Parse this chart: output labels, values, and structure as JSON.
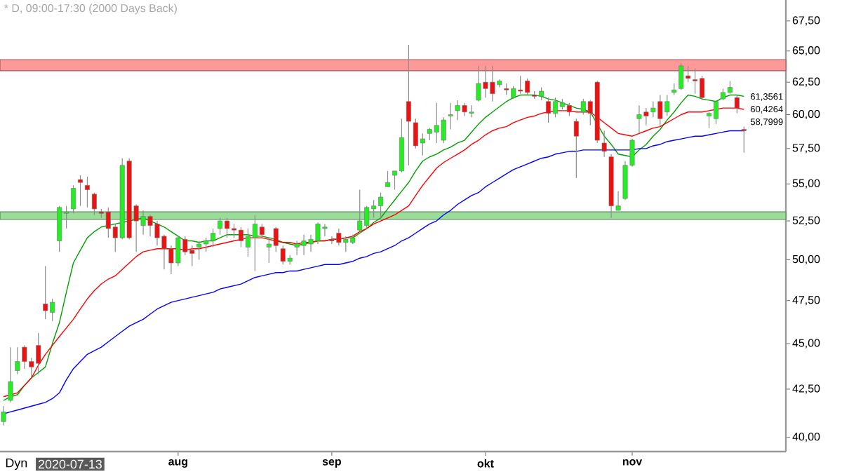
{
  "chart_data": {
    "type": "candlestick",
    "title": "* D, 09:00-17:30 (2000 Days Back)",
    "categories": [
      null,
      null,
      null,
      null,
      null,
      null,
      null,
      null,
      null,
      null,
      null,
      null,
      null,
      null,
      null,
      null,
      null,
      null,
      null,
      null,
      null,
      null,
      null,
      null,
      null,
      "aug",
      null,
      null,
      null,
      null,
      null,
      null,
      null,
      null,
      null,
      null,
      null,
      null,
      null,
      null,
      null,
      null,
      null,
      null,
      null,
      null,
      null,
      "sep",
      null,
      null,
      null,
      null,
      null,
      null,
      null,
      null,
      null,
      null,
      null,
      null,
      null,
      null,
      null,
      null,
      null,
      null,
      null,
      null,
      null,
      "okt",
      null,
      null,
      null,
      null,
      null,
      null,
      null,
      null,
      null,
      null,
      null,
      null,
      null,
      null,
      null,
      null,
      null,
      null,
      null,
      null,
      "nov",
      null,
      null,
      null,
      null,
      null,
      null,
      null,
      null,
      null,
      null,
      null,
      null,
      null,
      null,
      null,
      null
    ],
    "ohlc": [
      [
        40.8,
        41.6,
        40.6,
        41.3
      ],
      [
        41.9,
        44.8,
        41.8,
        42.9
      ],
      [
        43.5,
        44.8,
        43.3,
        44.0
      ],
      [
        44.8,
        44.9,
        43.6,
        44.0
      ],
      [
        44.0,
        44.2,
        43.1,
        43.7
      ],
      [
        44.9,
        45.6,
        43.3,
        43.9
      ],
      [
        47.3,
        49.6,
        46.4,
        46.9
      ],
      [
        46.8,
        47.6,
        46.3,
        47.4
      ],
      [
        51.2,
        53.5,
        50.5,
        53.4
      ],
      [
        53.0,
        53.5,
        52.0,
        53.1
      ],
      [
        53.3,
        54.9,
        53.0,
        54.7
      ],
      [
        55.3,
        55.6,
        53.5,
        55.1
      ],
      [
        54.9,
        55.5,
        53.4,
        54.6
      ],
      [
        54.3,
        54.4,
        52.9,
        53.3
      ],
      [
        53.1,
        53.3,
        52.7,
        53.0
      ],
      [
        53.1,
        53.4,
        51.4,
        52.0
      ],
      [
        52.1,
        52.3,
        50.5,
        51.4
      ],
      [
        51.4,
        56.8,
        51.3,
        56.3
      ],
      [
        56.6,
        56.8,
        51.3,
        51.4
      ],
      [
        53.5,
        53.6,
        50.5,
        52.5
      ],
      [
        52.2,
        53.2,
        51.6,
        52.8
      ],
      [
        52.8,
        52.9,
        51.5,
        52.2
      ],
      [
        52.3,
        52.5,
        50.9,
        51.4
      ],
      [
        51.5,
        51.6,
        49.4,
        50.7
      ],
      [
        50.7,
        50.9,
        49.1,
        49.8
      ],
      [
        49.8,
        51.5,
        49.6,
        51.4
      ],
      [
        51.3,
        51.5,
        50.3,
        50.5
      ],
      [
        50.6,
        50.9,
        49.6,
        50.4
      ],
      [
        50.8,
        51.2,
        50.0,
        51.0
      ],
      [
        51.0,
        51.4,
        50.5,
        51.2
      ],
      [
        51.2,
        52.0,
        50.8,
        51.7
      ],
      [
        52.0,
        52.7,
        51.6,
        52.5
      ],
      [
        52.5,
        52.7,
        51.4,
        52.0
      ],
      [
        52.0,
        52.3,
        51.4,
        51.9
      ],
      [
        51.9,
        52.1,
        50.8,
        51.2
      ],
      [
        50.8,
        52.0,
        50.2,
        51.5
      ],
      [
        51.4,
        52.9,
        49.3,
        52.3
      ],
      [
        52.1,
        52.3,
        51.4,
        51.6
      ],
      [
        50.8,
        51.4,
        49.8,
        51.0
      ],
      [
        52.0,
        52.1,
        50.5,
        50.9
      ],
      [
        50.7,
        50.9,
        49.7,
        49.9
      ],
      [
        49.9,
        50.3,
        49.7,
        50.1
      ],
      [
        50.8,
        51.2,
        50.3,
        51.0
      ],
      [
        50.9,
        51.6,
        50.3,
        51.2
      ],
      [
        51.0,
        51.6,
        50.5,
        51.3
      ],
      [
        51.2,
        52.4,
        51.0,
        52.3
      ],
      [
        52.0,
        52.3,
        51.5,
        52.1
      ],
      [
        51.3,
        51.5,
        51.0,
        51.2
      ],
      [
        51.7,
        52.0,
        50.9,
        51.1
      ],
      [
        51.1,
        51.5,
        50.5,
        51.3
      ],
      [
        51.1,
        51.6,
        51.0,
        51.4
      ],
      [
        51.9,
        54.6,
        51.8,
        52.5
      ],
      [
        52.2,
        53.5,
        52.0,
        53.4
      ],
      [
        53.3,
        53.9,
        52.7,
        53.5
      ],
      [
        53.5,
        54.4,
        52.7,
        54.1
      ],
      [
        54.8,
        55.9,
        54.8,
        55.1
      ],
      [
        55.6,
        55.9,
        54.6,
        55.9
      ],
      [
        55.9,
        59.7,
        55.8,
        58.3
      ],
      [
        61.0,
        65.5,
        56.3,
        59.5
      ],
      [
        59.4,
        59.7,
        57.5,
        57.7
      ],
      [
        57.9,
        58.6,
        57.0,
        58.2
      ],
      [
        58.6,
        59.0,
        58.1,
        58.9
      ],
      [
        58.7,
        60.9,
        57.9,
        59.2
      ],
      [
        58.1,
        59.8,
        57.9,
        59.6
      ],
      [
        59.9,
        60.9,
        58.9,
        60.0
      ],
      [
        60.3,
        61.1,
        59.6,
        60.7
      ],
      [
        60.7,
        60.9,
        59.9,
        60.2
      ],
      [
        60.1,
        60.7,
        59.8,
        60.2
      ],
      [
        61.1,
        63.8,
        61.0,
        62.4
      ],
      [
        62.5,
        63.8,
        61.3,
        62.0
      ],
      [
        62.5,
        63.8,
        61.0,
        61.6
      ],
      [
        62.3,
        62.7,
        62.1,
        62.6
      ],
      [
        62.0,
        62.4,
        61.5,
        61.9
      ],
      [
        61.3,
        62.2,
        61.2,
        62.0
      ],
      [
        61.9,
        63.0,
        61.6,
        61.8
      ],
      [
        62.6,
        62.8,
        61.5,
        61.7
      ],
      [
        61.5,
        61.8,
        61.2,
        61.4
      ],
      [
        61.4,
        62.1,
        61.1,
        61.8
      ],
      [
        61.0,
        61.3,
        59.4,
        60.1
      ],
      [
        60.1,
        61.3,
        59.8,
        61.0
      ],
      [
        60.6,
        61.2,
        60.4,
        60.9
      ],
      [
        60.7,
        60.9,
        59.9,
        60.2
      ],
      [
        59.5,
        59.7,
        55.4,
        58.4
      ],
      [
        60.2,
        61.2,
        60.0,
        61.0
      ],
      [
        61.0,
        61.1,
        59.2,
        60.1
      ],
      [
        62.5,
        62.6,
        57.9,
        58.1
      ],
      [
        57.9,
        58.8,
        56.9,
        57.3
      ],
      [
        56.9,
        57.1,
        52.7,
        53.5
      ],
      [
        53.2,
        54.5,
        53.2,
        53.5
      ],
      [
        54.0,
        56.6,
        53.9,
        56.3
      ],
      [
        56.3,
        58.2,
        56.2,
        58.1
      ],
      [
        59.7,
        60.7,
        58.6,
        60.0
      ],
      [
        60.2,
        60.5,
        59.2,
        59.9
      ],
      [
        60.2,
        61.0,
        59.8,
        60.5
      ],
      [
        61.0,
        61.5,
        59.1,
        59.7
      ],
      [
        60.2,
        61.5,
        59.9,
        61.0
      ],
      [
        61.7,
        62.4,
        61.5,
        61.9
      ],
      [
        62.0,
        64.0,
        61.9,
        63.8
      ],
      [
        63.0,
        63.8,
        62.5,
        62.8
      ],
      [
        62.7,
        63.6,
        61.6,
        62.6
      ],
      [
        62.8,
        63.0,
        61.1,
        61.3
      ],
      [
        59.9,
        60.2,
        59.0,
        60.1
      ],
      [
        59.7,
        61.1,
        59.3,
        61.0
      ],
      [
        61.2,
        62.0,
        61.1,
        61.7
      ],
      [
        61.7,
        62.6,
        61.6,
        62.1
      ],
      [
        61.3,
        61.5,
        60.1,
        60.5
      ],
      [
        58.9,
        59.1,
        57.2,
        58.8
      ]
    ],
    "series": [
      {
        "type": "line",
        "color": "#00a000",
        "values": [
          41.9,
          42.1,
          42.2,
          42.7,
          43.1,
          43.4,
          43.7,
          45.0,
          46.2,
          48.0,
          49.8,
          50.6,
          51.4,
          51.8,
          52.1,
          52.2,
          52.3,
          52.4,
          52.5,
          52.6,
          52.7,
          52.5,
          52.3,
          52.1,
          51.8,
          51.5,
          51.2,
          51.2,
          51.1,
          51.2,
          51.2,
          51.4,
          51.6,
          51.6,
          51.6,
          51.6,
          51.5,
          51.5,
          51.4,
          51.3,
          51.1,
          51.0,
          50.9,
          51.0,
          51.1,
          51.2,
          51.2,
          51.3,
          51.3,
          51.4,
          51.4,
          51.7,
          52.0,
          52.4,
          52.7,
          53.3,
          53.9,
          54.5,
          55.1,
          55.9,
          56.6,
          56.9,
          57.1,
          57.4,
          57.6,
          57.9,
          58.1,
          58.7,
          59.3,
          59.8,
          60.2,
          60.6,
          61.0,
          61.3,
          61.5,
          61.5,
          61.5,
          61.4,
          61.2,
          61.1,
          60.9,
          60.7,
          60.5,
          60.4,
          60.2,
          59.3,
          58.4,
          57.8,
          57.1,
          57.0,
          56.9,
          57.4,
          57.8,
          58.4,
          58.9,
          59.6,
          60.2,
          60.9,
          61.5,
          61.4,
          61.2,
          61.1,
          61.0,
          61.3,
          61.5,
          61.5,
          61.4
        ]
      },
      {
        "type": "line",
        "color": "#ff0000",
        "values": [
          42.1,
          42.2,
          42.3,
          42.7,
          43.1,
          43.8,
          44.4,
          44.9,
          45.4,
          45.9,
          46.4,
          47.0,
          47.6,
          48.1,
          48.5,
          48.8,
          49.0,
          49.4,
          49.8,
          50.2,
          50.5,
          50.6,
          50.7,
          50.7,
          50.7,
          50.7,
          50.6,
          50.7,
          50.7,
          50.8,
          50.9,
          51.0,
          51.1,
          51.2,
          51.3,
          51.4,
          51.4,
          51.4,
          51.3,
          51.2,
          51.1,
          51.1,
          51.0,
          51.1,
          51.1,
          51.2,
          51.2,
          51.3,
          51.3,
          51.4,
          51.5,
          51.8,
          52.0,
          52.3,
          52.5,
          52.7,
          52.9,
          53.2,
          53.5,
          54.2,
          54.9,
          55.5,
          56.1,
          56.5,
          56.8,
          57.1,
          57.4,
          57.8,
          58.1,
          58.5,
          58.8,
          59.0,
          59.1,
          59.4,
          59.6,
          59.8,
          59.9,
          60.1,
          60.2,
          60.3,
          60.3,
          60.3,
          60.2,
          60.2,
          60.2,
          59.8,
          59.4,
          59.0,
          58.6,
          58.5,
          58.4,
          58.6,
          58.8,
          59.0,
          59.1,
          59.4,
          59.7,
          60.0,
          60.2,
          60.2,
          60.2,
          60.3,
          60.4,
          60.5,
          60.5,
          60.5,
          60.4
        ]
      },
      {
        "type": "line",
        "color": "#0000ff",
        "values": [
          41.2,
          41.3,
          41.4,
          41.5,
          41.6,
          41.7,
          41.8,
          42.0,
          42.3,
          43.0,
          43.6,
          44.0,
          44.4,
          44.6,
          44.8,
          45.1,
          45.4,
          45.7,
          46.0,
          46.2,
          46.4,
          46.7,
          47.0,
          47.2,
          47.4,
          47.5,
          47.6,
          47.7,
          47.8,
          47.9,
          48.0,
          48.2,
          48.3,
          48.4,
          48.5,
          48.7,
          48.9,
          49.0,
          49.1,
          49.2,
          49.2,
          49.3,
          49.3,
          49.4,
          49.5,
          49.6,
          49.7,
          49.7,
          49.7,
          49.8,
          49.9,
          50.1,
          50.2,
          50.4,
          50.5,
          50.7,
          50.9,
          51.2,
          51.4,
          51.7,
          52.0,
          52.3,
          52.5,
          52.9,
          53.2,
          53.6,
          53.9,
          54.2,
          54.4,
          54.8,
          55.1,
          55.4,
          55.7,
          56.0,
          56.2,
          56.4,
          56.6,
          56.8,
          56.9,
          57.1,
          57.2,
          57.3,
          57.3,
          57.4,
          57.4,
          57.4,
          57.4,
          57.4,
          57.4,
          57.4,
          57.4,
          57.5,
          57.5,
          57.7,
          57.8,
          58.0,
          58.1,
          58.2,
          58.3,
          58.4,
          58.4,
          58.5,
          58.6,
          58.7,
          58.8,
          58.8,
          58.8
        ]
      }
    ],
    "bands": [
      {
        "axis": "y",
        "from": 63.4,
        "to": 64.3,
        "color": "#ff9999"
      },
      {
        "axis": "y",
        "from": 52.6,
        "to": 53.1,
        "color": "#99dd99"
      }
    ],
    "ylim": [
      39.3,
      69.3
    ],
    "yticks": [
      {
        "value": 40,
        "label": "40,00"
      },
      {
        "value": 42.5,
        "label": "42,50"
      },
      {
        "value": 45,
        "label": "45,00"
      },
      {
        "value": 47.5,
        "label": "47,50"
      },
      {
        "value": 50,
        "label": "50,00"
      },
      {
        "value": 52.5,
        "label": "52,50"
      },
      {
        "value": 55,
        "label": "55,00"
      },
      {
        "value": 57.5,
        "label": "57,50"
      },
      {
        "value": 60,
        "label": "60,00"
      },
      {
        "value": 62.5,
        "label": "62,50"
      },
      {
        "value": 65,
        "label": "65,00"
      },
      {
        "value": 67.5,
        "label": "67,50"
      }
    ],
    "log": "y",
    "marker": "none",
    "line_style": "solid",
    "annotations": [
      "Dyn",
      "2020-07-13",
      "61,3561",
      "60,4264",
      "58,7999"
    ]
  }
}
